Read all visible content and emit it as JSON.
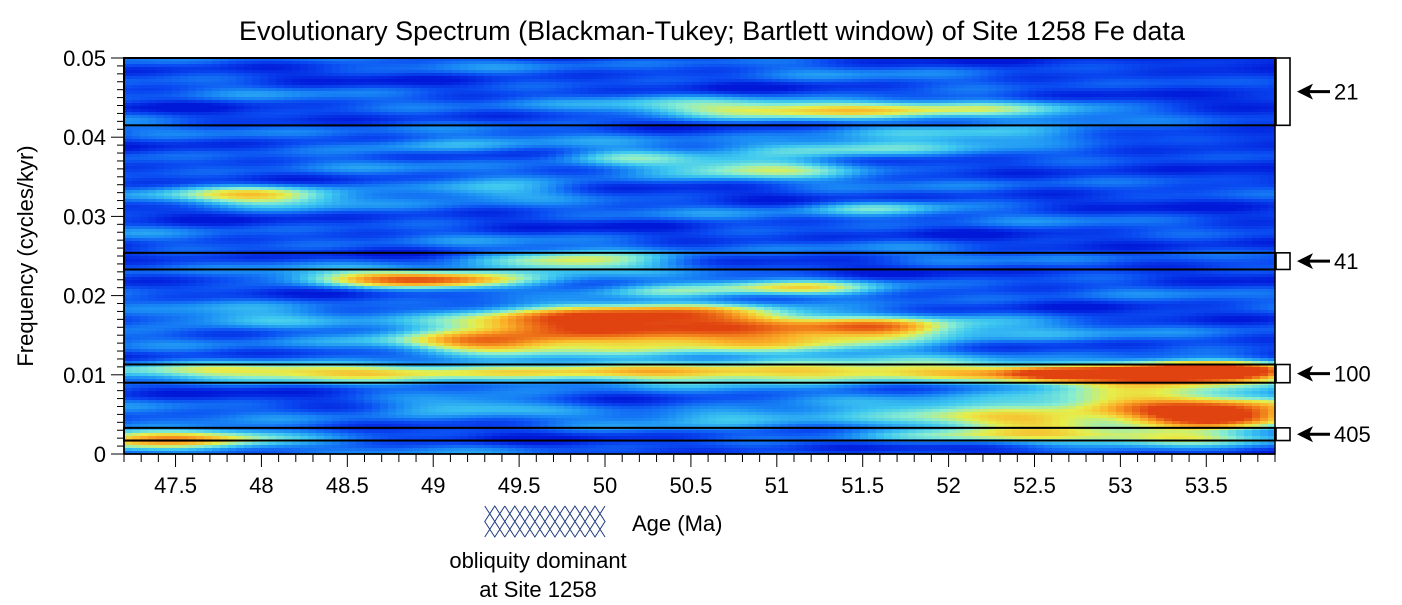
{
  "chart_data": {
    "type": "heatmap",
    "title": "Evolutionary Spectrum (Blackman-Tukey; Bartlett window) of Site 1258 Fe data",
    "xlabel": "Age (Ma)",
    "ylabel": "Frequency (cycles/kyr)",
    "xlim": [
      47.2,
      53.9
    ],
    "ylim": [
      0,
      0.05
    ],
    "x_ticks": [
      47.5,
      48,
      48.5,
      49,
      49.5,
      50,
      50.5,
      51,
      51.5,
      52,
      52.5,
      53,
      53.5
    ],
    "x_tick_labels": [
      "47.5",
      "48",
      "48.5",
      "49",
      "49.5",
      "50",
      "50.5",
      "51",
      "51.5",
      "52",
      "52.5",
      "53",
      "53.5"
    ],
    "y_ticks": [
      0,
      0.01,
      0.02,
      0.03,
      0.04,
      0.05
    ],
    "y_tick_labels": [
      "0",
      "0.01",
      "0.02",
      "0.03",
      "0.04",
      "0.05"
    ],
    "colormap": [
      "#0018d8",
      "#0a4cf2",
      "#1a8cf5",
      "#3ec8f0",
      "#8aeed0",
      "#e6ee4a",
      "#fbb62a",
      "#f07a1a",
      "#e04210"
    ],
    "hotspots": [
      {
        "x": 51.4,
        "y": 0.0435,
        "sx": 0.95,
        "sy": 0.0009,
        "v": 0.52
      },
      {
        "x": 52.3,
        "y": 0.0405,
        "sx": 0.55,
        "sy": 0.0008,
        "v": 0.35
      },
      {
        "x": 48.0,
        "y": 0.0327,
        "sx": 0.38,
        "sy": 0.0009,
        "v": 0.5
      },
      {
        "x": 49.3,
        "y": 0.0333,
        "sx": 0.35,
        "sy": 0.0008,
        "v": 0.3
      },
      {
        "x": 50.9,
        "y": 0.0362,
        "sx": 0.45,
        "sy": 0.0009,
        "v": 0.42
      },
      {
        "x": 50.1,
        "y": 0.0375,
        "sx": 0.3,
        "sy": 0.0008,
        "v": 0.3
      },
      {
        "x": 51.3,
        "y": 0.0385,
        "sx": 0.45,
        "sy": 0.0008,
        "v": 0.3
      },
      {
        "x": 51.6,
        "y": 0.031,
        "sx": 0.3,
        "sy": 0.0007,
        "v": 0.3
      },
      {
        "x": 49.0,
        "y": 0.0388,
        "sx": 0.4,
        "sy": 0.0008,
        "v": 0.22
      },
      {
        "x": 49.8,
        "y": 0.0242,
        "sx": 0.4,
        "sy": 0.0009,
        "v": 0.55
      },
      {
        "x": 49.0,
        "y": 0.0218,
        "sx": 0.38,
        "sy": 0.0008,
        "v": 0.5
      },
      {
        "x": 48.7,
        "y": 0.0223,
        "sx": 0.5,
        "sy": 0.0008,
        "v": 0.3
      },
      {
        "x": 51.1,
        "y": 0.021,
        "sx": 0.35,
        "sy": 0.0007,
        "v": 0.4
      },
      {
        "x": 50.3,
        "y": 0.0205,
        "sx": 0.3,
        "sy": 0.0007,
        "v": 0.3
      },
      {
        "x": 50.4,
        "y": 0.0178,
        "sx": 0.55,
        "sy": 0.0011,
        "v": 0.6
      },
      {
        "x": 50.5,
        "y": 0.015,
        "sx": 1.05,
        "sy": 0.0015,
        "v": 0.78
      },
      {
        "x": 49.6,
        "y": 0.0165,
        "sx": 0.4,
        "sy": 0.0011,
        "v": 0.45
      },
      {
        "x": 51.6,
        "y": 0.016,
        "sx": 0.3,
        "sy": 0.0008,
        "v": 0.4
      },
      {
        "x": 47.8,
        "y": 0.017,
        "sx": 0.45,
        "sy": 0.0008,
        "v": 0.25
      },
      {
        "x": 49.3,
        "y": 0.014,
        "sx": 0.3,
        "sy": 0.0008,
        "v": 0.35
      },
      {
        "x": 48.3,
        "y": 0.0105,
        "sx": 1.1,
        "sy": 0.0008,
        "v": 0.5
      },
      {
        "x": 51.2,
        "y": 0.0103,
        "sx": 1.3,
        "sy": 0.0009,
        "v": 0.66
      },
      {
        "x": 53.45,
        "y": 0.0105,
        "sx": 0.35,
        "sy": 0.0008,
        "v": 0.95
      },
      {
        "x": 53.2,
        "y": 0.0095,
        "sx": 0.55,
        "sy": 0.001,
        "v": 0.65
      },
      {
        "x": 52.6,
        "y": 0.0102,
        "sx": 0.2,
        "sy": 0.0006,
        "v": 0.35
      },
      {
        "x": 53.3,
        "y": 0.006,
        "sx": 0.6,
        "sy": 0.0014,
        "v": 0.62
      },
      {
        "x": 53.55,
        "y": 0.0045,
        "sx": 0.3,
        "sy": 0.0009,
        "v": 0.8
      },
      {
        "x": 52.0,
        "y": 0.0055,
        "sx": 0.45,
        "sy": 0.0009,
        "v": 0.35
      },
      {
        "x": 52.5,
        "y": 0.004,
        "sx": 0.45,
        "sy": 0.0008,
        "v": 0.45
      },
      {
        "x": 50.8,
        "y": 0.005,
        "sx": 0.45,
        "sy": 0.0008,
        "v": 0.3
      },
      {
        "x": 49.2,
        "y": 0.0062,
        "sx": 0.4,
        "sy": 0.0008,
        "v": 0.28
      },
      {
        "x": 47.5,
        "y": 0.002,
        "sx": 0.45,
        "sy": 0.0009,
        "v": 0.72
      },
      {
        "x": 52.3,
        "y": 0.0022,
        "sx": 0.6,
        "sy": 0.0007,
        "v": 0.35
      },
      {
        "x": 53.4,
        "y": 0.002,
        "sx": 0.4,
        "sy": 0.0007,
        "v": 0.4
      }
    ],
    "bands": [
      {
        "label": "21",
        "y0": 0.0415,
        "y1": 0.05
      },
      {
        "label": "41",
        "y0": 0.0233,
        "y1": 0.0254
      },
      {
        "label": "100",
        "y0": 0.009,
        "y1": 0.0113
      },
      {
        "label": "405",
        "y0": 0.0017,
        "y1": 0.0033
      }
    ],
    "annotation": {
      "line1": "obliquity dominant",
      "line2": "at Site 1258",
      "x_start": 49.3,
      "x_end": 50.0
    }
  }
}
